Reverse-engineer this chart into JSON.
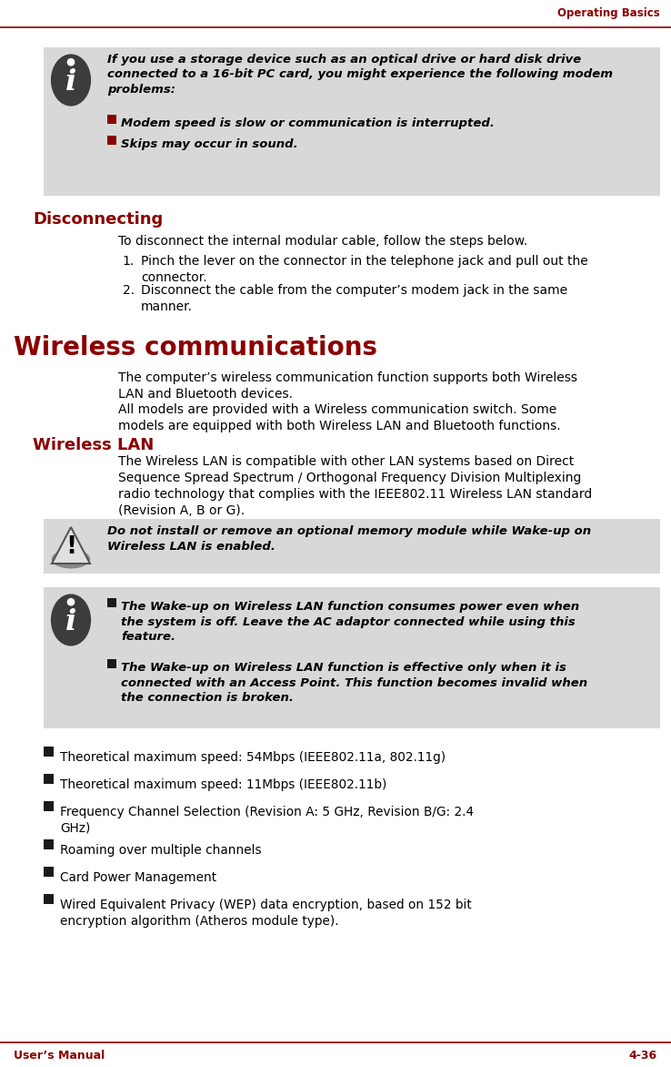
{
  "page_title": "Operating Basics",
  "footer_left": "User’s Manual",
  "footer_right": "4-36",
  "header_line_color": "#8B0000",
  "footer_line_color": "#8B0000",
  "bg_color": "#FFFFFF",
  "note_bg_color": "#D8D8D8",
  "red_color": "#8B0000",
  "note_box_1_text": "If you use a storage device such as an optical drive or hard disk drive\nconnected to a 16-bit PC card, you might experience the following modem\nproblems:",
  "note_box_1_bullets": [
    "Modem speed is slow or communication is interrupted.",
    "Skips may occur in sound."
  ],
  "disconnecting_heading": "Disconnecting",
  "disconnecting_intro": "To disconnect the internal modular cable, follow the steps below.",
  "disconnecting_steps": [
    "Pinch the lever on the connector in the telephone jack and pull out the\nconnector.",
    "Disconnect the cable from the computer’s modem jack in the same\nmanner."
  ],
  "wireless_heading": "Wireless communications",
  "wireless_para1": "The computer’s wireless communication function supports both Wireless\nLAN and Bluetooth devices.",
  "wireless_para2": "All models are provided with a Wireless communication switch. Some\nmodels are equipped with both Wireless LAN and Bluetooth functions.",
  "wlan_heading": "Wireless LAN",
  "wlan_para": "The Wireless LAN is compatible with other LAN systems based on Direct\nSequence Spread Spectrum / Orthogonal Frequency Division Multiplexing\nradio technology that complies with the IEEE802.11 Wireless LAN standard\n(Revision A, B or G).",
  "warning_text": "Do not install or remove an optional memory module while Wake-up on\nWireless LAN is enabled.",
  "note_box_2_bullets": [
    "The Wake-up on Wireless LAN function consumes power even when\nthe system is off. Leave the AC adaptor connected while using this\nfeature.",
    "The Wake-up on Wireless LAN function is effective only when it is\nconnected with an Access Point. This function becomes invalid when\nthe connection is broken."
  ],
  "final_bullets": [
    "Theoretical maximum speed: 54Mbps (IEEE802.11a, 802.11g)",
    "Theoretical maximum speed: 11Mbps (IEEE802.11b)",
    "Frequency Channel Selection (Revision A: 5 GHz, Revision B/G: 2.4\nGHz)",
    "Roaming over multiple channels",
    "Card Power Management",
    "Wired Equivalent Privacy (WEP) data encryption, based on 152 bit\nencryption algorithm (Atheros module type)."
  ]
}
